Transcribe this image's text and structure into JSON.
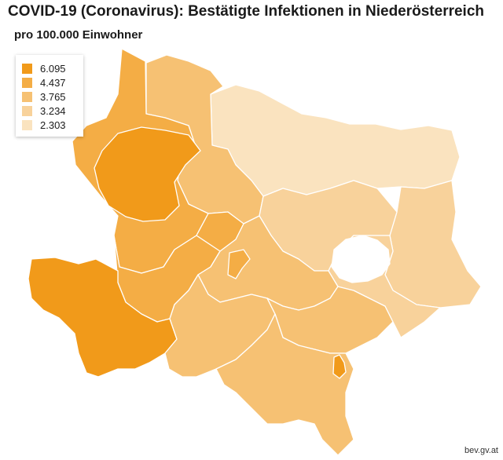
{
  "title": "COVID-19 (Coronavirus): Bestätigte Infektionen in Niederösterreich",
  "subtitle": "pro 100.000 Einwohner",
  "source": "bev.gv.at",
  "legend": [
    {
      "label": "6.095",
      "color": "#f19a1a"
    },
    {
      "label": "4.437",
      "color": "#f4ad45"
    },
    {
      "label": "3.765",
      "color": "#f6c173"
    },
    {
      "label": "3.234",
      "color": "#f8d29b"
    },
    {
      "label": "2.303",
      "color": "#fae3bf"
    }
  ]
}
